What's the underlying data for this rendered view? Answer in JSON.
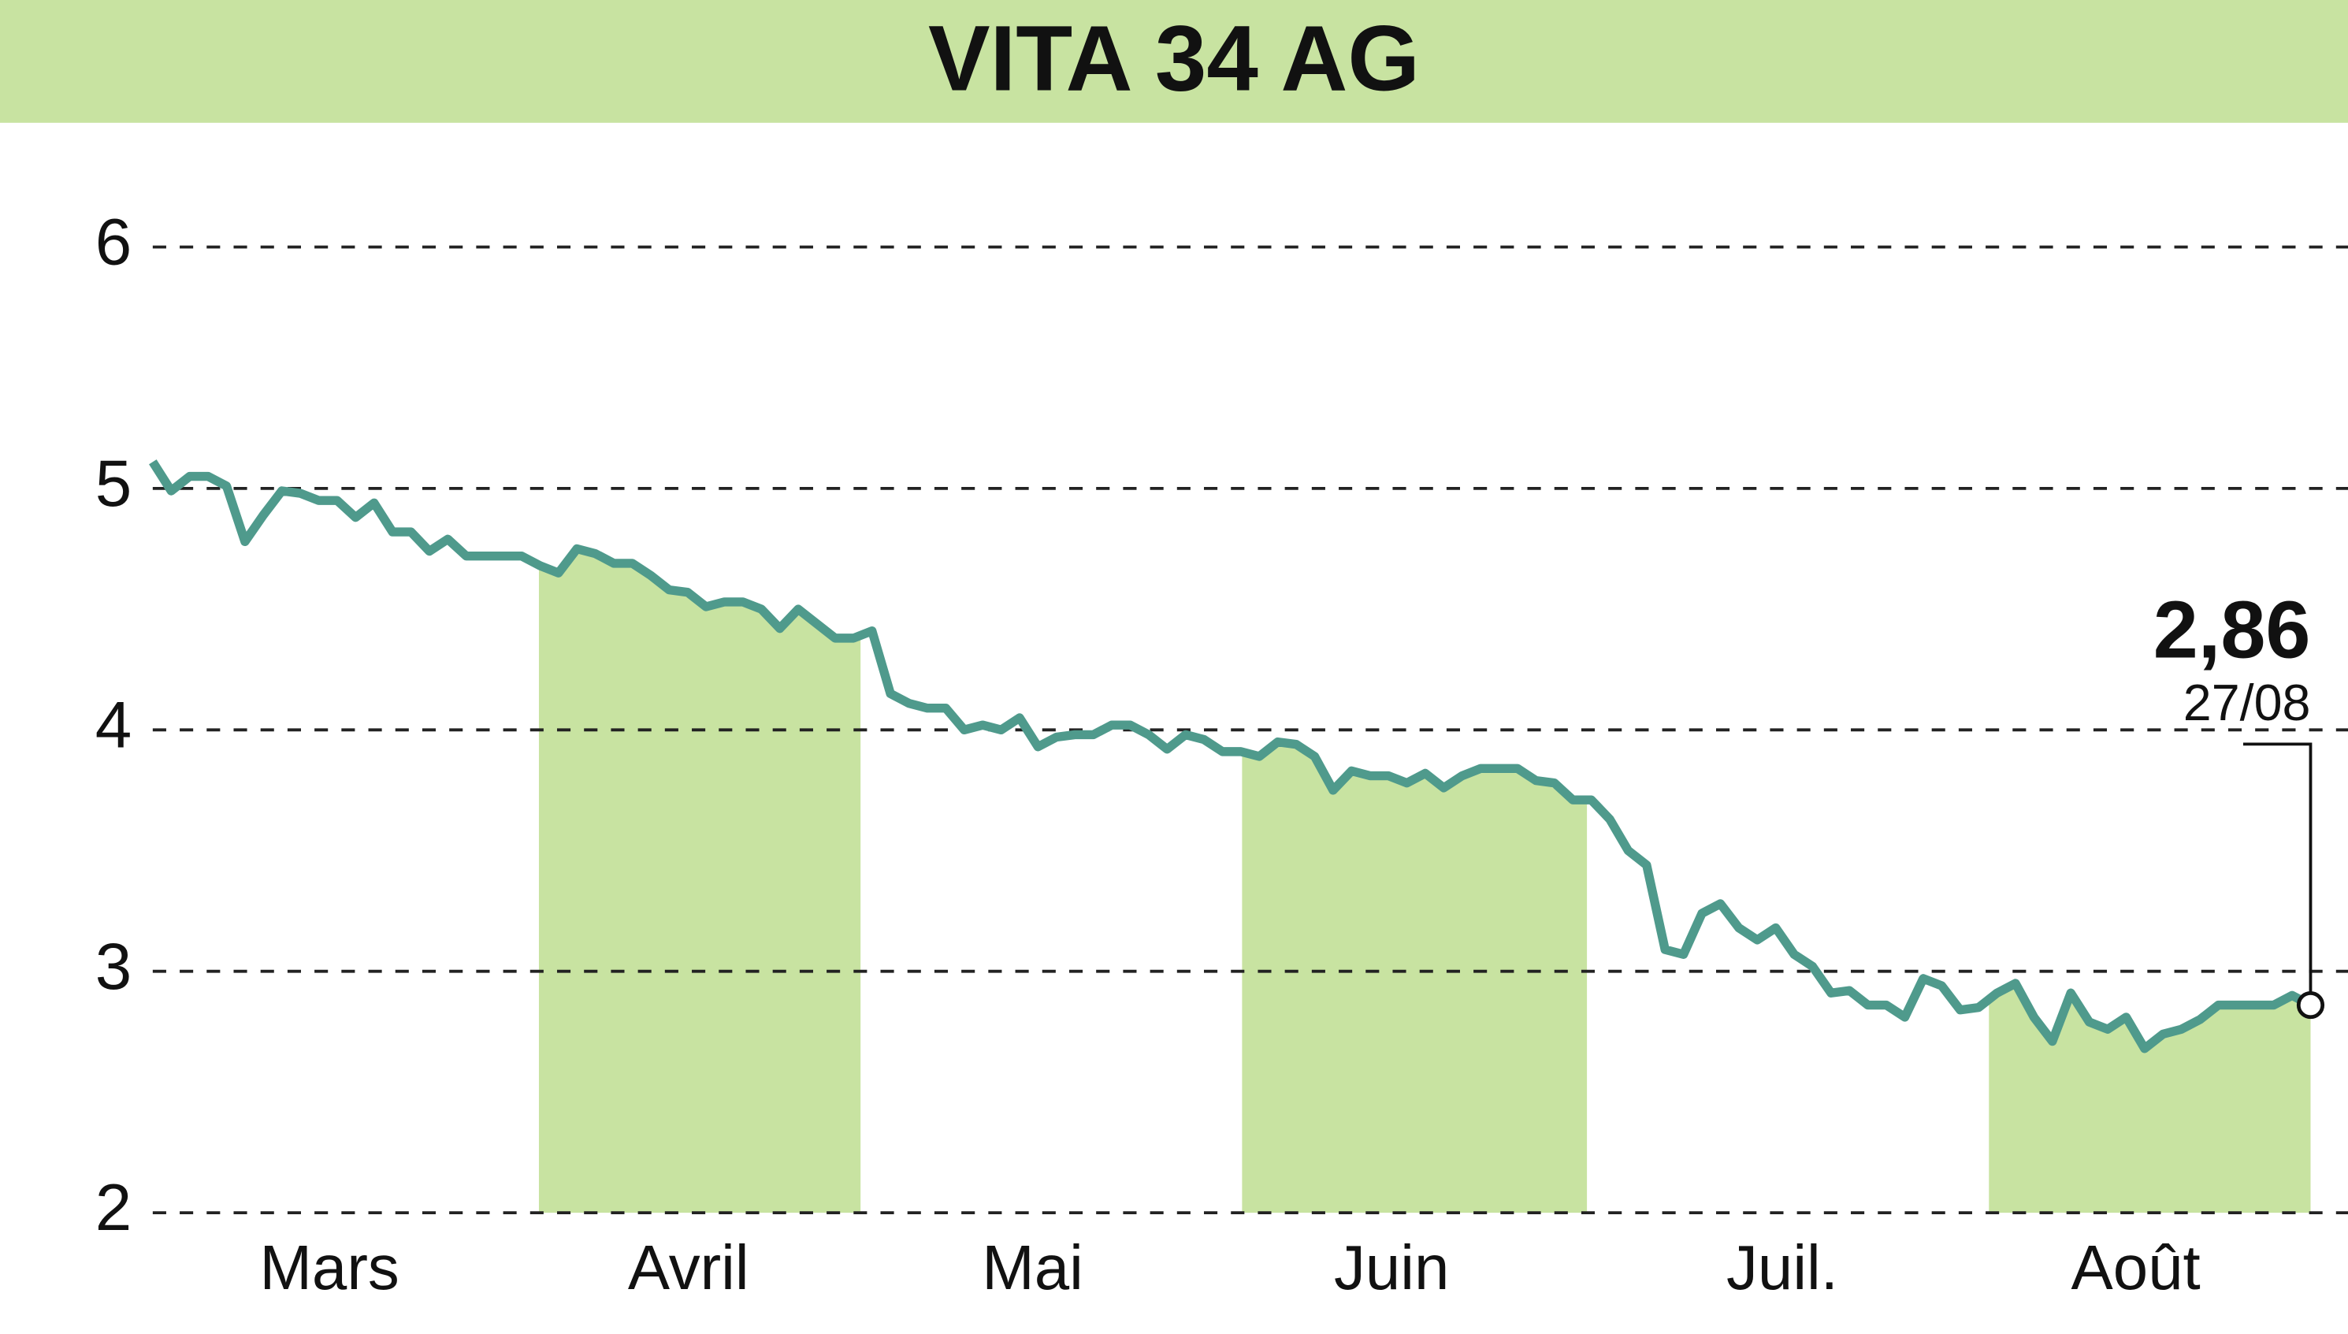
{
  "chart_data": {
    "type": "line",
    "title": "VITA 34 AG",
    "color": "#4f9a8c",
    "area_color": "#c8e3a1",
    "header_color": "#c8e3a1",
    "grid": true,
    "ylim": [
      2,
      6
    ],
    "yticks": [
      2,
      3,
      4,
      5,
      6
    ],
    "xlim": [
      0,
      116
    ],
    "xticks": [
      {
        "value": 9.5,
        "label": "Mars"
      },
      {
        "value": 28.8,
        "label": "Avril"
      },
      {
        "value": 47.3,
        "label": "Mai"
      },
      {
        "value": 66.6,
        "label": "Juin"
      },
      {
        "value": 87.6,
        "label": "Juil."
      },
      {
        "value": 106.6,
        "label": "Août"
      }
    ],
    "values": [
      5.11,
      4.99,
      5.05,
      5.05,
      5.01,
      4.78,
      4.89,
      4.99,
      4.98,
      4.95,
      4.95,
      4.88,
      4.94,
      4.82,
      4.82,
      4.74,
      4.79,
      4.72,
      4.72,
      4.72,
      4.72,
      4.68,
      4.65,
      4.75,
      4.73,
      4.69,
      4.69,
      4.64,
      4.58,
      4.57,
      4.51,
      4.53,
      4.53,
      4.5,
      4.42,
      4.5,
      4.44,
      4.38,
      4.38,
      4.41,
      4.15,
      4.11,
      4.09,
      4.09,
      4.0,
      4.02,
      4.0,
      4.05,
      3.93,
      3.97,
      3.98,
      3.98,
      4.02,
      4.02,
      3.98,
      3.92,
      3.98,
      3.96,
      3.91,
      3.91,
      3.89,
      3.95,
      3.94,
      3.89,
      3.75,
      3.83,
      3.81,
      3.81,
      3.78,
      3.82,
      3.76,
      3.81,
      3.84,
      3.84,
      3.84,
      3.79,
      3.78,
      3.71,
      3.71,
      3.63,
      3.5,
      3.44,
      3.09,
      3.07,
      3.24,
      3.28,
      3.18,
      3.13,
      3.18,
      3.07,
      3.02,
      2.91,
      2.92,
      2.86,
      2.86,
      2.81,
      2.97,
      2.94,
      2.84,
      2.85,
      2.91,
      2.95,
      2.81,
      2.71,
      2.91,
      2.79,
      2.76,
      2.81,
      2.68,
      2.74,
      2.76,
      2.8,
      2.86,
      2.86,
      2.86,
      2.86,
      2.9,
      2.86
    ],
    "last_label": "2,86",
    "last_date": "27/08"
  }
}
